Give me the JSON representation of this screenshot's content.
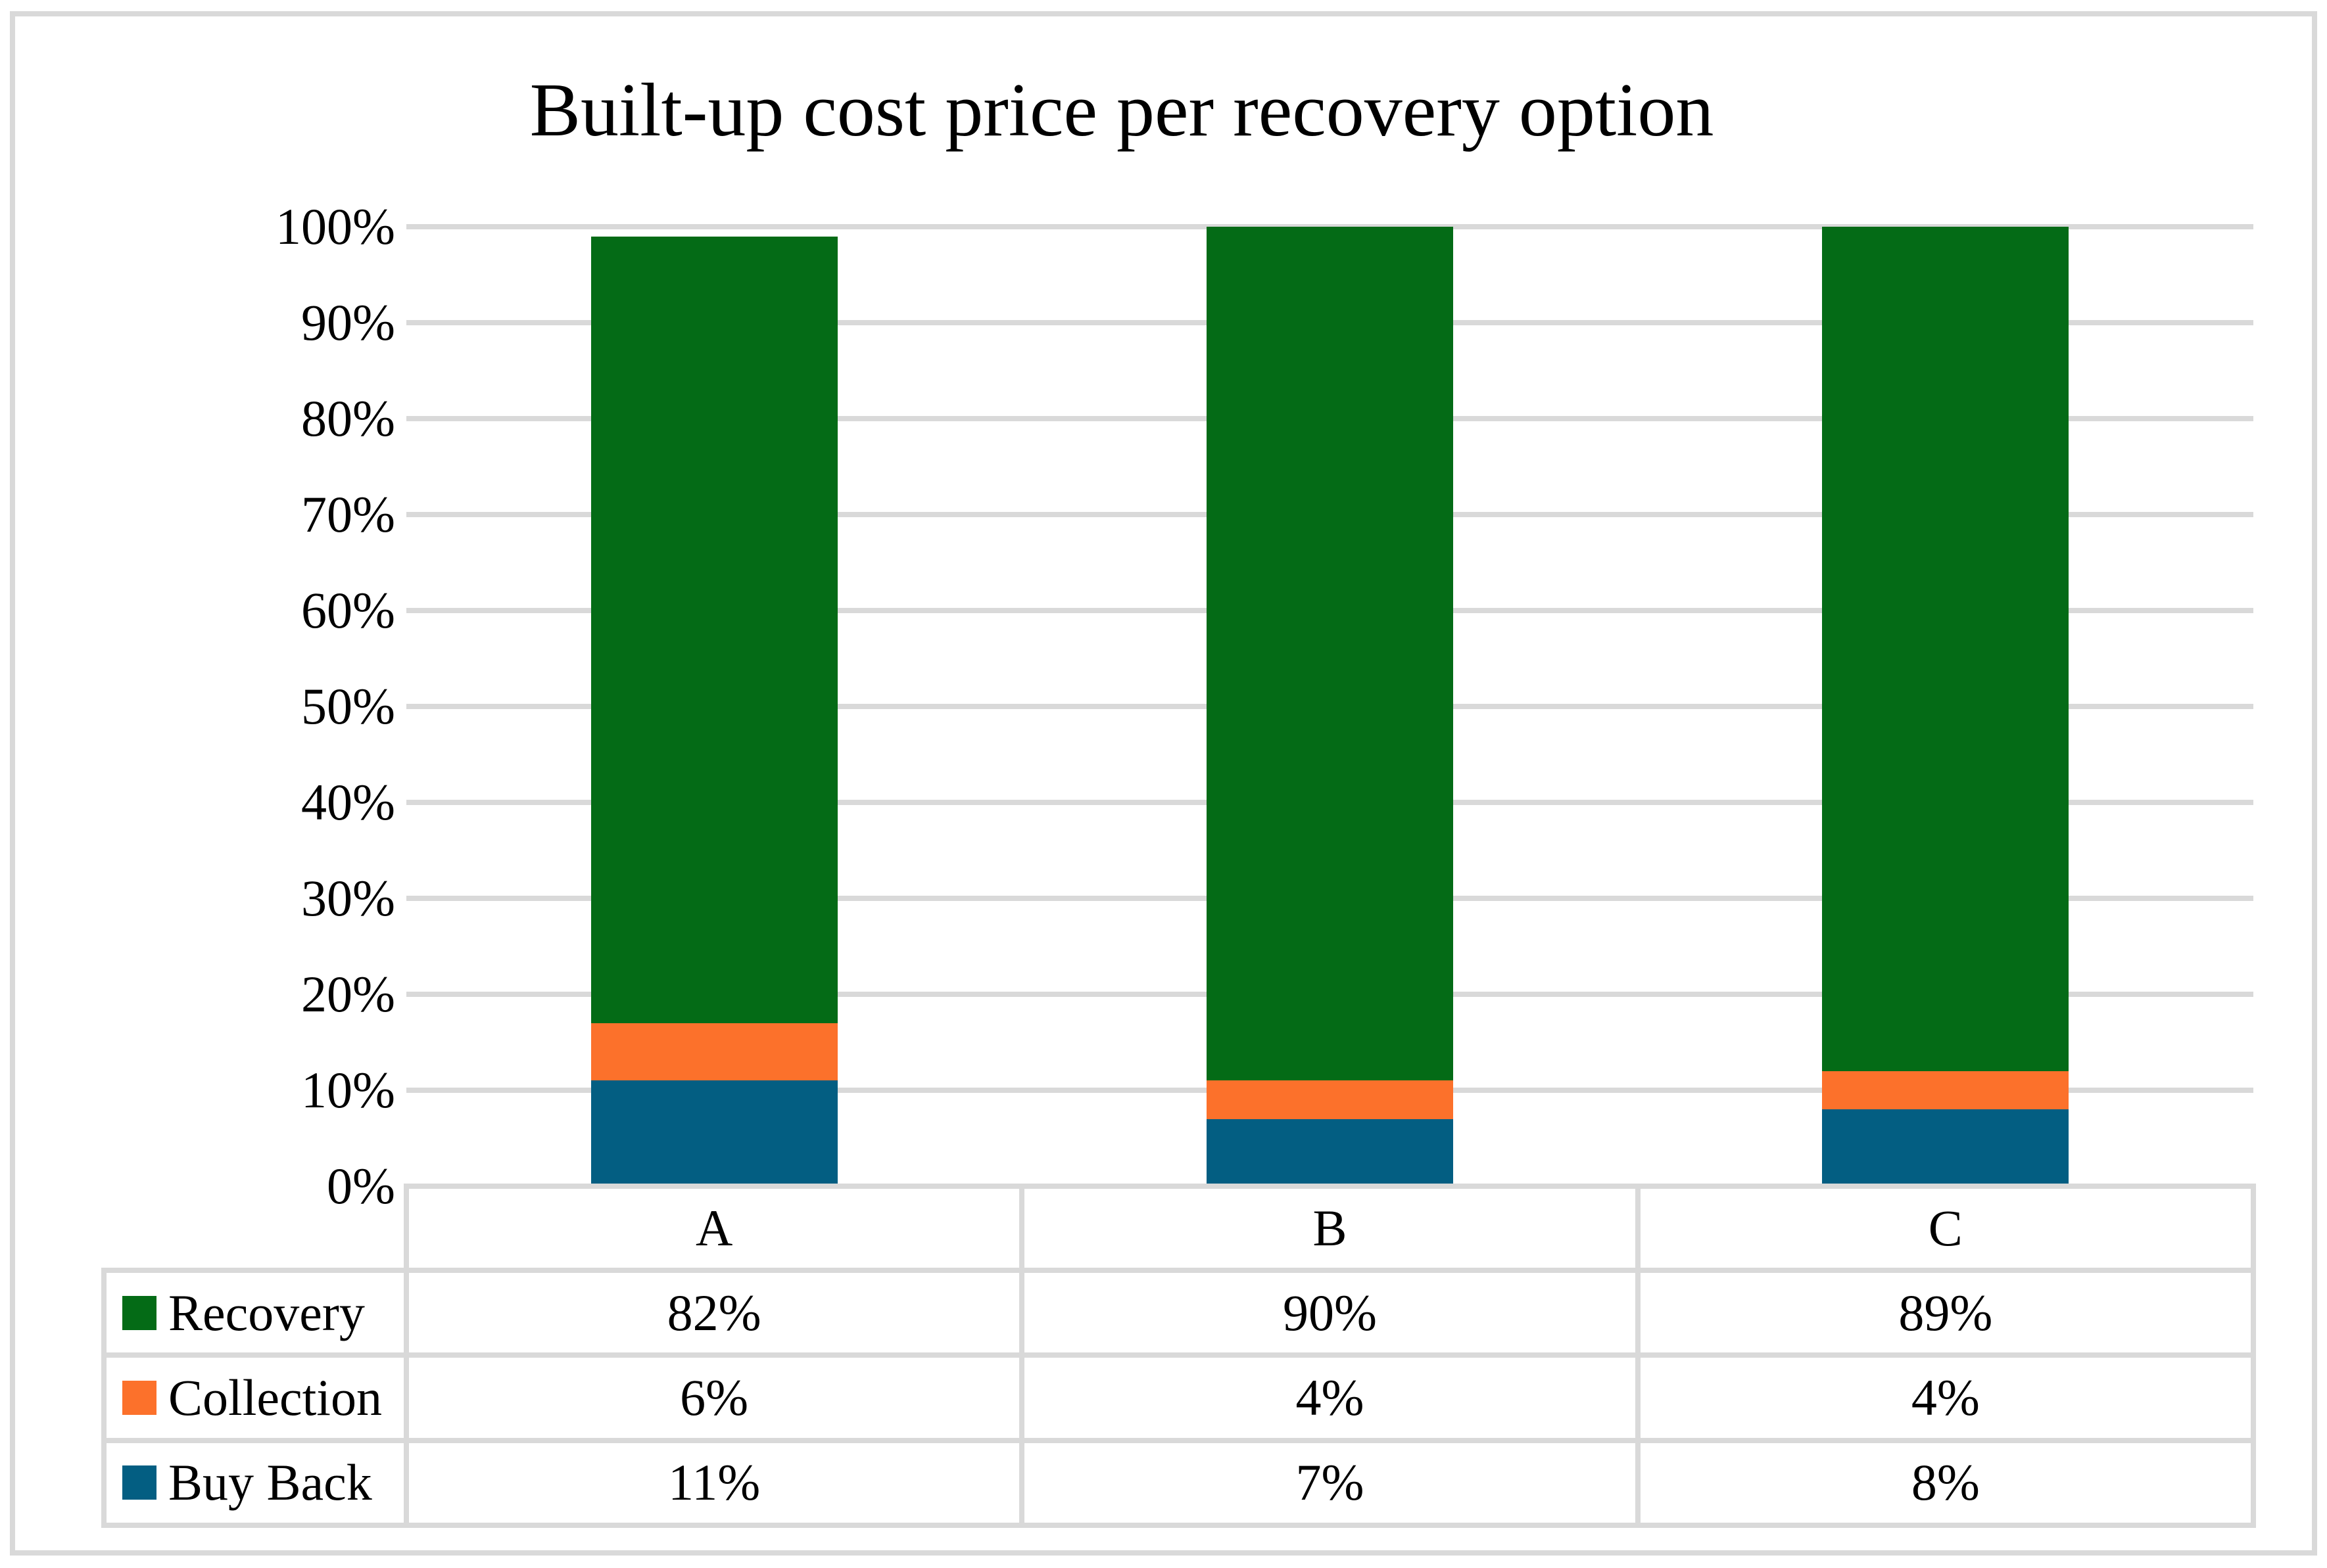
{
  "chart": {
    "title": "Built-up cost price per recovery option"
  },
  "colors": {
    "gridline": "#D9D9D9",
    "frame": "#D9D9D9",
    "text": "#000000",
    "recovery_green": "#046B16",
    "collection_orange": "#FC712B",
    "buyback_blue": "#035E82"
  },
  "chart_data": {
    "type": "bar",
    "stacked": true,
    "title": "Built-up cost price per recovery option",
    "xlabel": "",
    "ylabel": "",
    "categories": [
      "A",
      "B",
      "C"
    ],
    "series": [
      {
        "name": "Recovery",
        "color": "#046B16",
        "values": [
          82,
          90,
          89
        ]
      },
      {
        "name": "Collection",
        "color": "#FC712B",
        "values": [
          6,
          4,
          4
        ]
      },
      {
        "name": "Buy Back",
        "color": "#035E82",
        "values": [
          11,
          7,
          8
        ]
      }
    ],
    "stack_order_bottom_to_top": [
      "Buy Back",
      "Collection",
      "Recovery"
    ],
    "value_suffix": "%",
    "ylim": [
      0,
      100
    ],
    "ytick_step": 10,
    "ytick_labels": [
      "0%",
      "10%",
      "20%",
      "30%",
      "40%",
      "50%",
      "60%",
      "70%",
      "80%",
      "90%",
      "100%"
    ],
    "grid": true,
    "legend_position": "table-left",
    "table_values": {
      "Recovery": [
        "82%",
        "90%",
        "89%"
      ],
      "Collection": [
        "6%",
        "4%",
        "4%"
      ],
      "Buy Back": [
        "11%",
        "7%",
        "8%"
      ]
    }
  }
}
